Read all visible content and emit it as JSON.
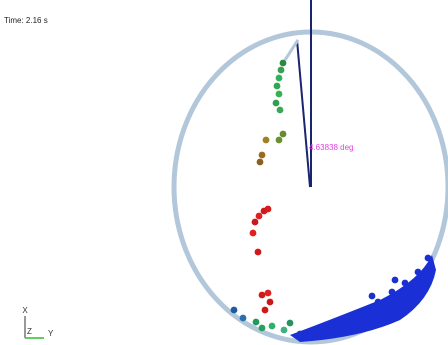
{
  "time_label": "Time: 2.16 s",
  "angle_label": "4.63838 deg",
  "axes": {
    "x": "X",
    "y": "Y",
    "z": "Z"
  }
}
